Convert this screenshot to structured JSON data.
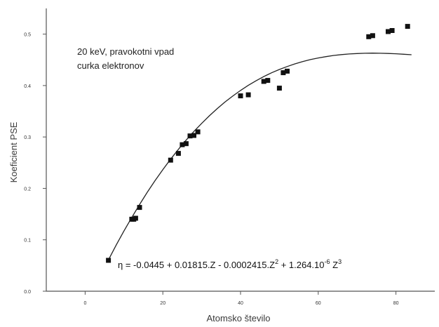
{
  "chart_data": {
    "type": "scatter",
    "xlabel": "Atomsko število",
    "ylabel": "Koeficient PSE",
    "xlim": [
      -10,
      90
    ],
    "ylim": [
      0,
      0.55
    ],
    "x_ticks": [
      0,
      20,
      40,
      60,
      80
    ],
    "x_tick_labels": [
      "0",
      "20",
      "40",
      "60",
      "80"
    ],
    "y_ticks": [
      0,
      0.1,
      0.2,
      0.3,
      0.4,
      0.5
    ],
    "y_tick_labels": [
      "0.0",
      "0.1",
      "0.2",
      "0.3",
      "0.4",
      "0.5"
    ],
    "grid": false,
    "annotation": [
      "20 keV, pravokotni vpad",
      "curka elektronov"
    ],
    "equation": {
      "eta": "η",
      "a": " = -0.0445 + 0.01815.Z - 0.0002415.Z",
      "a_sup": "2",
      "b": " + 1.264.10",
      "b_sup": "-6",
      "c": " Z",
      "c_sup": "3"
    },
    "series": [
      {
        "type": "scatter",
        "x": [
          6,
          12,
          12.5,
          13,
          14,
          22,
          24,
          25,
          26,
          27,
          28,
          29,
          40,
          42,
          46,
          47,
          50,
          51,
          52,
          73,
          74,
          78,
          79,
          83
        ],
        "y": [
          0.06,
          0.14,
          0.14,
          0.142,
          0.163,
          0.255,
          0.268,
          0.285,
          0.287,
          0.302,
          0.303,
          0.31,
          0.38,
          0.382,
          0.408,
          0.41,
          0.395,
          0.425,
          0.428,
          0.495,
          0.497,
          0.505,
          0.507,
          0.515
        ]
      },
      {
        "type": "line",
        "x": [
          6,
          8,
          10,
          12,
          14,
          16,
          18,
          20,
          22,
          24,
          26,
          28,
          30,
          32,
          34,
          36,
          38,
          40,
          42,
          44,
          46,
          48,
          50,
          52,
          54,
          56,
          58,
          60,
          62,
          64,
          66,
          68,
          70,
          72,
          74,
          76,
          78,
          80,
          82,
          84
        ],
        "y": [
          0.0609,
          0.0898,
          0.1172,
          0.1435,
          0.1686,
          0.1925,
          0.2151,
          0.2365,
          0.2568,
          0.2759,
          0.2938,
          0.3108,
          0.3265,
          0.3413,
          0.3551,
          0.3679,
          0.3796,
          0.3904,
          0.4004,
          0.4093,
          0.4175,
          0.4248,
          0.4313,
          0.437,
          0.4422,
          0.4466,
          0.4505,
          0.4537,
          0.4563,
          0.4585,
          0.4602,
          0.4614,
          0.4622,
          0.4628,
          0.463,
          0.4628,
          0.4624,
          0.4618,
          0.4609,
          0.4599
        ]
      }
    ],
    "colors": {
      "axis": "#555555",
      "points": "#111111",
      "line": "#222222",
      "text": "#333333"
    }
  }
}
